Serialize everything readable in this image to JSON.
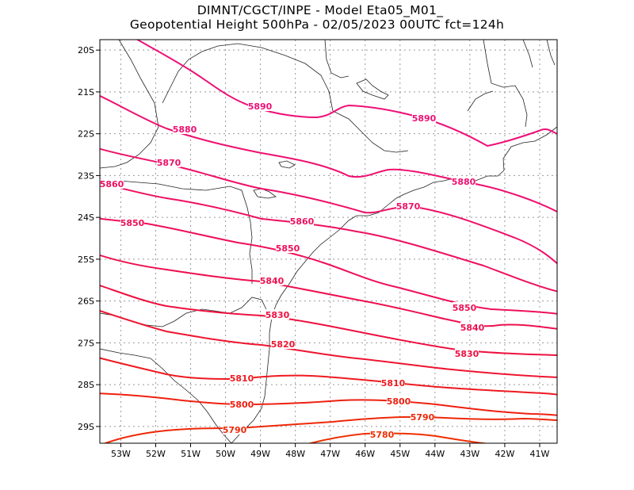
{
  "title_line1": "DIMNT/CGCT/INPE -  Model Eta05_M01_",
  "title_line2": "Geopotential Height 500hPa -  02/05/2023 00UTC fct=124h",
  "map": {
    "lon_range": [
      -53.6,
      -40.5
    ],
    "lat_range": [
      -29.4,
      -19.75
    ],
    "lat_ticks": [
      "20S",
      "21S",
      "22S",
      "23S",
      "24S",
      "25S",
      "26S",
      "27S",
      "28S",
      "29S"
    ],
    "lon_ticks": [
      "53W",
      "52W",
      "51W",
      "50W",
      "49W",
      "48W",
      "47W",
      "46W",
      "45W",
      "44W",
      "43W",
      "42W",
      "41W"
    ],
    "contours": [
      {
        "level": 5890,
        "color": "#ee1077",
        "label": "5890",
        "label2": "5890"
      },
      {
        "level": 5880,
        "color": "#ee1070",
        "label": "5880",
        "label2": "5880"
      },
      {
        "level": 5870,
        "color": "#ee1068",
        "label": "5870",
        "label2": "5870"
      },
      {
        "level": 5860,
        "color": "#ee1060",
        "label": "5860",
        "label2": "5860"
      },
      {
        "level": 5850,
        "color": "#ee1058",
        "label": "5850",
        "label2": "5850",
        "label3": "5850"
      },
      {
        "level": 5840,
        "color": "#ee1050",
        "label": "5840",
        "label2": "5840"
      },
      {
        "level": 5830,
        "color": "#ee1040",
        "label": "5830",
        "label2": "5830"
      },
      {
        "level": 5820,
        "color": "#ee1530",
        "label": "5820"
      },
      {
        "level": 5810,
        "color": "#ee1a20",
        "label": "5810",
        "label2": "5810"
      },
      {
        "level": 5800,
        "color": "#ee2010",
        "label": "5800",
        "label2": "5800"
      },
      {
        "level": 5790,
        "color": "#ee2808",
        "label": "5790",
        "label2": "5790"
      },
      {
        "level": 5780,
        "color": "#ee3000",
        "label": "5780"
      }
    ]
  }
}
